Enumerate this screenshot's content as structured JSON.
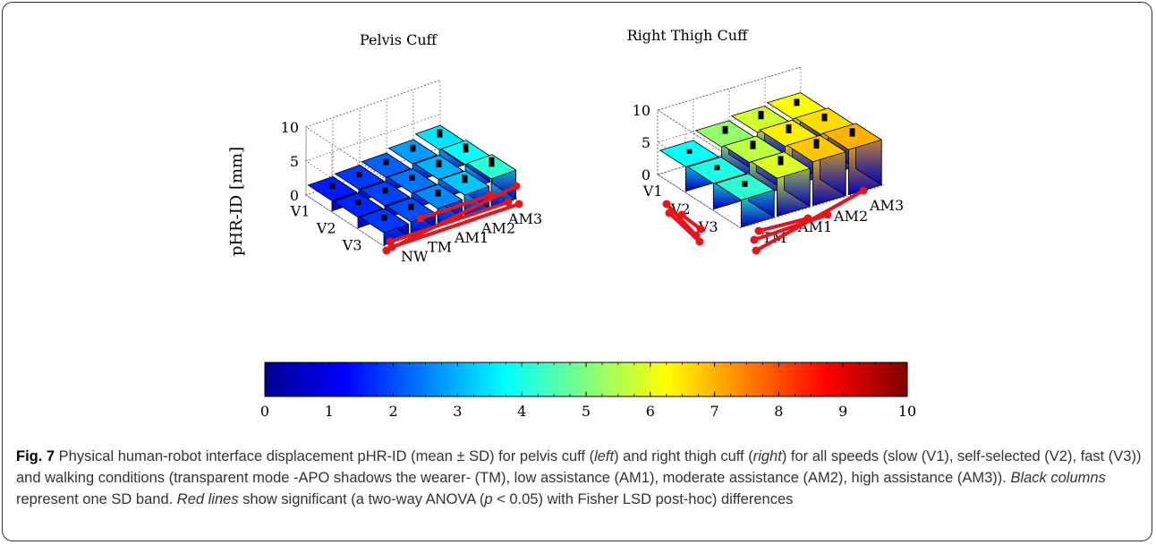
{
  "chart_data": [
    {
      "type": "bar3d",
      "title": "Pelvis Cuff",
      "zlabel": "pHR-ID [mm]",
      "zlim": [
        0,
        10
      ],
      "zticks": [
        "0",
        "5",
        "10"
      ],
      "rows": [
        "V1",
        "V2",
        "V3"
      ],
      "columns": [
        "NW",
        "TM",
        "AM1",
        "AM2",
        "AM3"
      ],
      "values": [
        [
          1.5,
          1.8,
          2.2,
          2.8,
          3.5
        ],
        [
          1.6,
          1.9,
          2.4,
          3.0,
          3.8
        ],
        [
          1.8,
          2.0,
          2.6,
          3.2,
          4.2
        ]
      ],
      "sd": [
        [
          0.8,
          0.8,
          0.9,
          1.0,
          1.2
        ],
        [
          0.8,
          0.9,
          0.9,
          1.1,
          1.3
        ],
        [
          0.9,
          0.9,
          1.0,
          1.2,
          1.4
        ]
      ],
      "grid": true
    },
    {
      "type": "bar3d",
      "title": "Right Thigh Cuff",
      "zlabel": "",
      "zlim": [
        0,
        10
      ],
      "zticks": [
        "0",
        "5",
        "10"
      ],
      "rows": [
        "V1",
        "V2",
        "V3"
      ],
      "columns": [
        "TM",
        "AM1",
        "AM2",
        "AM3"
      ],
      "values": [
        [
          3.8,
          5.2,
          5.8,
          6.2
        ],
        [
          4.0,
          5.6,
          6.4,
          6.6
        ],
        [
          4.2,
          5.9,
          6.8,
          7.0
        ]
      ],
      "sd": [
        [
          0.7,
          1.2,
          1.3,
          1.1
        ],
        [
          0.8,
          1.3,
          1.4,
          1.2
        ],
        [
          0.9,
          1.4,
          1.5,
          1.3
        ]
      ],
      "grid": true
    }
  ],
  "colorbar": {
    "min": 0,
    "max": 10,
    "ticks": [
      "0",
      "1",
      "2",
      "3",
      "4",
      "5",
      "6",
      "7",
      "8",
      "9",
      "10"
    ],
    "colormap": "jet"
  },
  "caption": {
    "fig_label": "Fig. 7",
    "part1": " Physical human-robot interface displacement pHR-ID (mean ± SD) for pelvis cuff (",
    "left": "left",
    "part2": ") and right thigh cuff (",
    "right": "right",
    "part3": ") for all speeds (slow (V1), self-selected (V2), fast (V3)) and walking conditions (transparent mode -APO shadows the wearer- (TM), low assistance (AM1), moderate assistance (AM2), high assistance (AM3)). ",
    "black_cols": "Black columns",
    "part4": " represent one SD band. ",
    "red_lines": "Red lines",
    "part5": " show significant (a two-way ANOVA (",
    "p": "p",
    "part6": " < 0.05) with Fisher LSD post-hoc) differences"
  },
  "colors": {
    "significance_line": "#e8141a",
    "sd_column": "#000000",
    "frame": "#333333"
  }
}
